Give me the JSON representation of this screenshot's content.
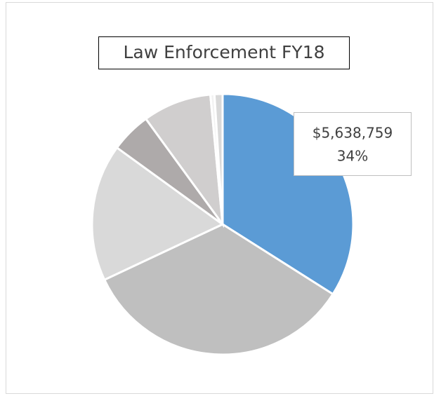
{
  "chart_data": {
    "type": "pie",
    "title": "Law Enforcement FY18",
    "categories": [
      null,
      null,
      null,
      null,
      null,
      null,
      null
    ],
    "values": [
      34,
      34,
      17,
      5,
      8.5,
      0.5,
      1
    ],
    "value_labels": [
      {
        "amount": "$5,638,759",
        "percent": "34%"
      },
      null,
      null,
      null,
      null,
      null,
      null
    ],
    "colors": [
      "#5b9bd5",
      "#bfbfbf",
      "#d9d9d9",
      "#aeaaaa",
      "#d0cece",
      "#f2f2f2",
      "#d9d9d9"
    ]
  }
}
